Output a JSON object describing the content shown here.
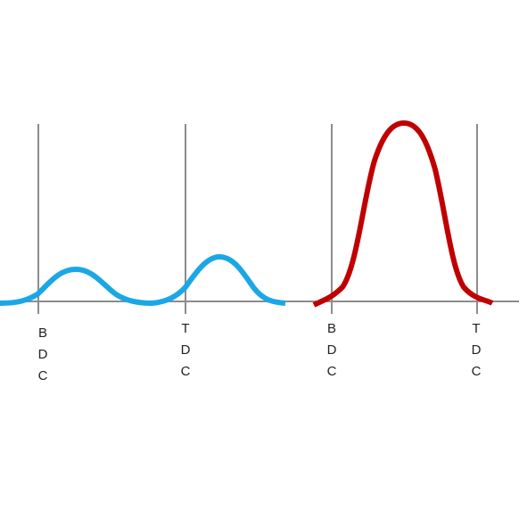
{
  "colors": {
    "axis": "#8c8c8c",
    "blue_curve": "#1aa7e6",
    "red_curve": "#c00000",
    "label": "#222222"
  },
  "markers": [
    {
      "id": "marker-1",
      "label": "BDC",
      "letters": [
        "B",
        "D",
        "C"
      ]
    },
    {
      "id": "marker-2",
      "label": "TDC",
      "letters": [
        "T",
        "D",
        "C"
      ]
    },
    {
      "id": "marker-3",
      "label": "BDC",
      "letters": [
        "B",
        "D",
        "C"
      ]
    },
    {
      "id": "marker-4",
      "label": "TDC",
      "letters": [
        "T",
        "D",
        "C"
      ]
    }
  ]
}
